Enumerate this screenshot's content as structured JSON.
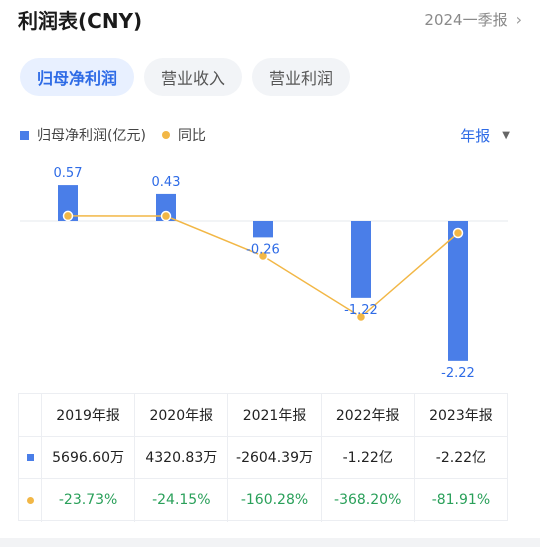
{
  "header": {
    "title": "利润表(CNY)",
    "period": "2024一季报",
    "chevron": "›"
  },
  "tabs": [
    {
      "label": "归母净利润",
      "active": true
    },
    {
      "label": "营业收入",
      "active": false
    },
    {
      "label": "营业利润",
      "active": false
    }
  ],
  "legend": {
    "bar_label": "归母净利润(亿元)",
    "line_label": "同比",
    "frequency": "年报",
    "frequency_caret": "▼"
  },
  "colors": {
    "bar": "#4a7ee8",
    "line": "#f2b746",
    "positive_text": "#2aa05a",
    "accent": "#2e6be6"
  },
  "chart_data": {
    "type": "bar",
    "categories": [
      "2019年报",
      "2020年报",
      "2021年报",
      "2022年报",
      "2023年报"
    ],
    "series": [
      {
        "name": "归母净利润(亿元)",
        "values": [
          0.57,
          0.43,
          -0.26,
          -1.22,
          -2.22
        ],
        "labels": [
          "0.57",
          "0.43",
          "-0.26",
          "-1.22",
          "-2.22"
        ]
      },
      {
        "name": "同比",
        "type": "line",
        "values": [
          -23.73,
          -24.15,
          -160.28,
          -368.2,
          -81.91
        ]
      }
    ]
  },
  "table": {
    "headers": [
      "2019年报",
      "2020年报",
      "2021年报",
      "2022年报",
      "2023年报"
    ],
    "values": [
      "5696.60万",
      "4320.83万",
      "-2604.39万",
      "-1.22亿",
      "-2.22亿"
    ],
    "yoy": [
      "-23.73%",
      "-24.15%",
      "-160.28%",
      "-368.20%",
      "-81.91%"
    ]
  }
}
